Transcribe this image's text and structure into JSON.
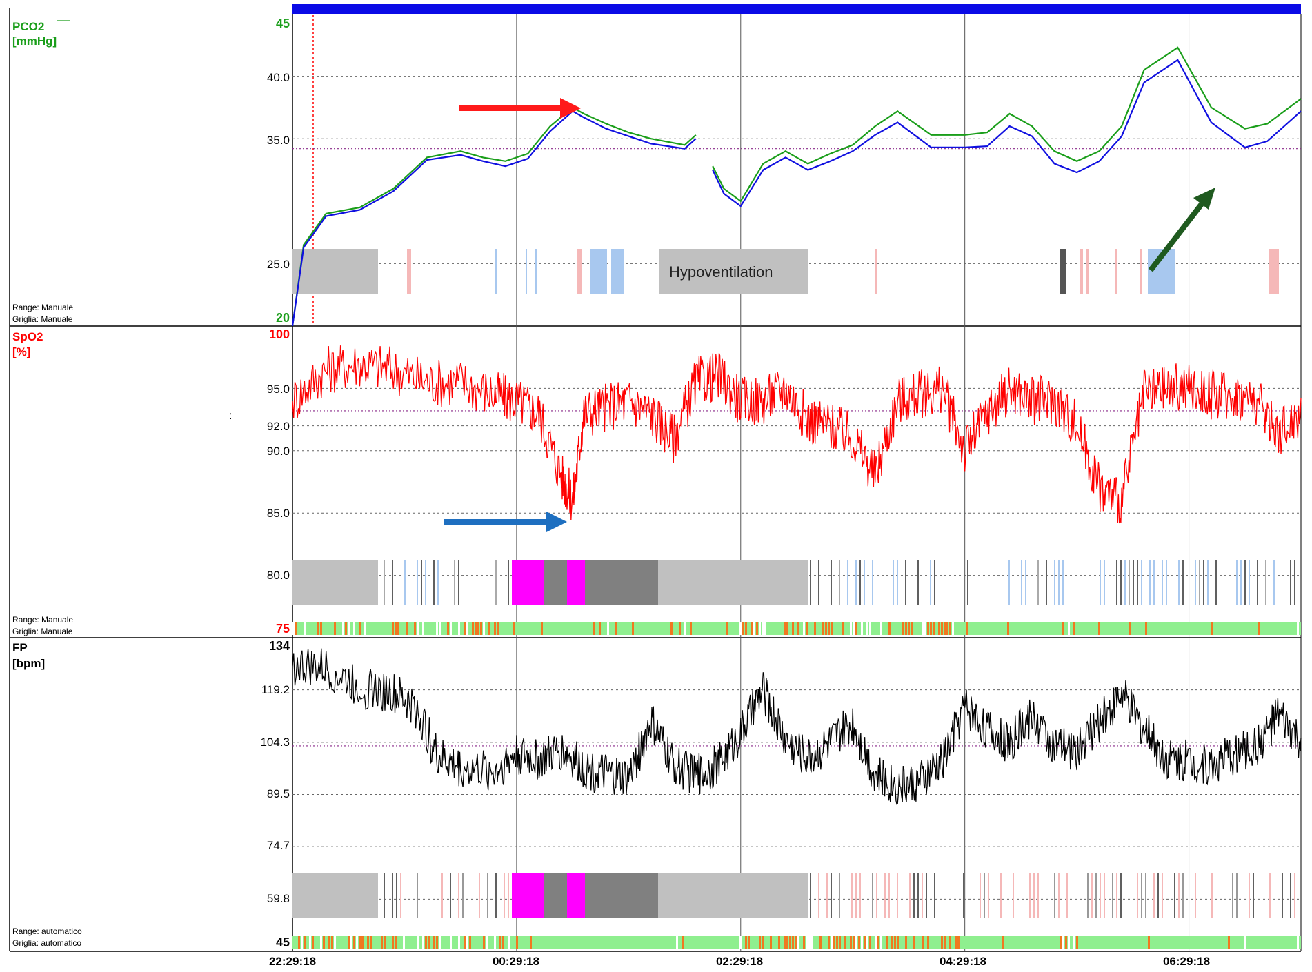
{
  "time_axis": {
    "ticks": [
      "22:29:18",
      "00:29:18",
      "02:29:18",
      "04:29:18",
      "06:29:18"
    ],
    "start": "22:29:18",
    "end": "07:29:18"
  },
  "panels": {
    "pco2": {
      "title": "PCO2",
      "unit": "[mmHg]",
      "top_label": "45",
      "bottom_label": "20",
      "ticks": [
        "40.0",
        "35.0",
        "25.0"
      ],
      "range_note": "Range: Manuale",
      "grid_note": "Griglia: Manuale",
      "annotation": "Hypoventilation",
      "color": "#1a9e1a"
    },
    "spo2": {
      "title": "SpO2",
      "unit": "[%]",
      "top_label": "100",
      "bottom_label": "75",
      "ticks": [
        "95.0",
        "92.0",
        "90.0",
        "85.0",
        "80.0"
      ],
      "range_note": "Range: Manuale",
      "grid_note": "Griglia: Manuale",
      "stray_mark": ":",
      "color": "#ff0000"
    },
    "fp": {
      "title": "FP",
      "unit": "[bpm]",
      "top_label": "134",
      "bottom_label": "45",
      "ticks": [
        "119.2",
        "104.3",
        "89.5",
        "74.7",
        "59.8"
      ],
      "range_note": "Range: automatico",
      "grid_note": "Griglia: automatico",
      "color": "#000000"
    }
  },
  "colors": {
    "pco2_green": "#1a9e1a",
    "pco2_blue": "#1010e0",
    "spo2_red": "#ff0000",
    "fp_black": "#000000",
    "top_bar": "#0a0ae6",
    "gray_block": "#c0c0c0",
    "light_blue_event": "#a8c8ef",
    "pink_event": "#f5b8b8",
    "magenta_event": "#ff00ff",
    "quality_green": "#8fef8f",
    "quality_orange": "#f07820",
    "arrow_red": "#ff1a1a",
    "arrow_blue": "#1e6fc0",
    "arrow_dark_green": "#1f5a1f"
  },
  "chart_data": [
    {
      "type": "line",
      "panel": "PCO2 [mmHg]",
      "x_unit": "hours since 22:29:18",
      "ylim": [
        20,
        45
      ],
      "series": [
        {
          "name": "PCO2",
          "color": "#1a9e1a",
          "x": [
            0.0,
            0.1,
            0.3,
            0.6,
            0.9,
            1.2,
            1.5,
            1.7,
            1.9,
            2.1,
            2.3,
            2.5,
            2.6,
            2.8,
            3.0,
            3.2,
            3.5,
            3.6,
            3.62,
            3.75,
            3.85,
            4.0,
            4.2,
            4.4,
            4.5,
            4.6,
            4.8,
            5.0,
            5.2,
            5.4,
            5.7,
            6.0,
            6.2,
            6.4,
            6.6,
            6.8,
            7.0,
            7.2,
            7.4,
            7.6,
            7.9,
            8.2,
            8.5,
            8.7,
            9.0
          ],
          "y": [
            20.0,
            26.5,
            29.0,
            29.5,
            31.0,
            33.5,
            34.0,
            33.5,
            33.2,
            33.8,
            36.0,
            37.5,
            37.0,
            36.2,
            35.5,
            35.0,
            34.5,
            35.3,
            null,
            32.8,
            31.0,
            30.0,
            33.0,
            34.0,
            33.5,
            33.0,
            33.8,
            34.5,
            36.0,
            37.2,
            35.3,
            35.3,
            35.5,
            37.0,
            36.0,
            34.0,
            33.2,
            34.0,
            36.0,
            40.5,
            42.3,
            37.5,
            35.8,
            36.2,
            38.2
          ]
        },
        {
          "name": "PCO2 (blue trace)",
          "color": "#1010e0",
          "x": [
            0.0,
            0.1,
            0.3,
            0.6,
            0.9,
            1.2,
            1.5,
            1.7,
            1.9,
            2.1,
            2.3,
            2.5,
            2.6,
            2.8,
            3.0,
            3.2,
            3.5,
            3.6,
            3.62,
            3.75,
            3.85,
            4.0,
            4.2,
            4.4,
            4.5,
            4.6,
            4.8,
            5.0,
            5.2,
            5.4,
            5.7,
            6.0,
            6.2,
            6.4,
            6.6,
            6.8,
            7.0,
            7.2,
            7.4,
            7.6,
            7.9,
            8.2,
            8.5,
            8.7,
            9.0
          ],
          "y": [
            20.0,
            26.3,
            28.8,
            29.3,
            30.8,
            33.3,
            33.7,
            33.2,
            32.8,
            33.4,
            35.6,
            37.2,
            36.7,
            35.8,
            35.2,
            34.6,
            34.2,
            35.0,
            null,
            32.5,
            30.6,
            29.6,
            32.5,
            33.5,
            33.0,
            32.5,
            33.2,
            34.0,
            35.3,
            36.3,
            34.3,
            34.3,
            34.4,
            36.0,
            35.2,
            33.0,
            32.3,
            33.2,
            35.2,
            39.5,
            41.3,
            36.3,
            34.3,
            34.8,
            37.2
          ]
        }
      ],
      "annotation": "Hypoventilation"
    },
    {
      "type": "line",
      "panel": "SpO2 [%]",
      "x_unit": "hours since 22:29:18",
      "ylim": [
        75,
        100
      ],
      "series": [
        {
          "name": "SpO2",
          "color": "#ff0000",
          "x": [
            0.0,
            0.3,
            0.6,
            0.9,
            1.2,
            1.5,
            1.8,
            2.0,
            2.2,
            2.4,
            2.5,
            2.6,
            2.8,
            3.0,
            3.2,
            3.4,
            3.6,
            3.8,
            4.0,
            4.2,
            4.4,
            4.6,
            4.8,
            5.0,
            5.2,
            5.4,
            5.6,
            5.8,
            6.0,
            6.2,
            6.4,
            6.6,
            6.8,
            7.0,
            7.2,
            7.4,
            7.6,
            7.8,
            8.0,
            8.2,
            8.4,
            8.6,
            8.8,
            9.0
          ],
          "y": [
            94.0,
            96.5,
            97.0,
            96.5,
            95.5,
            95.5,
            94.5,
            94.0,
            93.0,
            88.0,
            86.0,
            93.0,
            93.5,
            94.0,
            93.0,
            91.0,
            95.5,
            96.0,
            94.0,
            94.0,
            95.0,
            92.5,
            92.0,
            91.0,
            88.0,
            94.0,
            94.5,
            95.0,
            90.0,
            93.0,
            95.0,
            94.0,
            94.0,
            92.0,
            87.0,
            86.0,
            94.5,
            95.0,
            95.0,
            94.5,
            94.5,
            94.0,
            91.5,
            93.0
          ]
        }
      ]
    },
    {
      "type": "line",
      "panel": "FP [bpm]",
      "x_unit": "hours since 22:29:18",
      "ylim": [
        45,
        134
      ],
      "series": [
        {
          "name": "FP",
          "color": "#000000",
          "x": [
            0.0,
            0.3,
            0.6,
            0.9,
            1.1,
            1.3,
            1.5,
            1.8,
            2.0,
            2.2,
            2.4,
            2.6,
            2.8,
            3.0,
            3.2,
            3.4,
            3.6,
            3.8,
            4.0,
            4.2,
            4.4,
            4.6,
            4.8,
            5.0,
            5.2,
            5.4,
            5.6,
            5.8,
            6.0,
            6.2,
            6.4,
            6.6,
            6.8,
            7.0,
            7.2,
            7.4,
            7.6,
            7.8,
            8.0,
            8.2,
            8.4,
            8.6,
            8.8,
            9.0
          ],
          "y": [
            126.0,
            125.0,
            120.0,
            118.0,
            114.0,
            100.0,
            97.0,
            96.0,
            101.0,
            99.0,
            102.0,
            97.0,
            95.0,
            94.0,
            110.0,
            98.0,
            95.0,
            98.0,
            107.0,
            119.0,
            105.0,
            100.0,
            104.0,
            110.0,
            95.0,
            92.0,
            93.0,
            99.0,
            115.0,
            108.0,
            104.0,
            112.0,
            103.0,
            102.0,
            110.0,
            118.0,
            108.0,
            100.0,
            99.0,
            98.0,
            101.0,
            103.0,
            112.0,
            104.0
          ]
        }
      ]
    }
  ]
}
